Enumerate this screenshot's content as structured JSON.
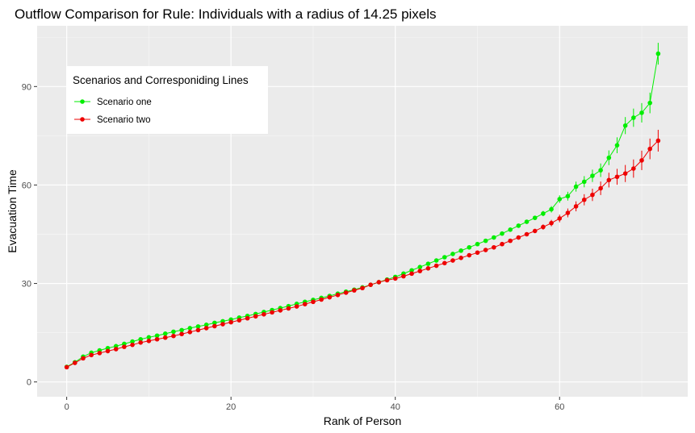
{
  "chart_data": {
    "type": "line",
    "title": "Outflow Comparison for Rule: Individuals with a radius of 14.25 pixels",
    "xlabel": "Rank of Person",
    "ylabel": "Evacuation Time",
    "xlim": [
      -3.6,
      75.6
    ],
    "ylim": [
      -4.5,
      108.5
    ],
    "x_ticks": [
      0,
      20,
      40,
      60
    ],
    "y_ticks": [
      0,
      30,
      60,
      90
    ],
    "x_tick_labels": [
      "0",
      "20",
      "40",
      "60"
    ],
    "y_tick_labels": [
      "0",
      "30",
      "60",
      "90"
    ],
    "grid": true,
    "background": "#ebebeb",
    "legend": {
      "title": "Scenarios and Corresponiding Lines",
      "position": "top-left"
    },
    "x": [
      0,
      1,
      2,
      3,
      4,
      5,
      6,
      7,
      8,
      9,
      10,
      11,
      12,
      13,
      14,
      15,
      16,
      17,
      18,
      19,
      20,
      21,
      22,
      23,
      24,
      25,
      26,
      27,
      28,
      29,
      30,
      31,
      32,
      33,
      34,
      35,
      36,
      37,
      38,
      39,
      40,
      41,
      42,
      43,
      44,
      45,
      46,
      47,
      48,
      49,
      50,
      51,
      52,
      53,
      54,
      55,
      56,
      57,
      58,
      59,
      60,
      61,
      62,
      63,
      64,
      65,
      66,
      67,
      68,
      69,
      70,
      71,
      72
    ],
    "series": [
      {
        "name": "Scenario one",
        "color": "#00ee00",
        "values": [
          4.6,
          6.0,
          7.7,
          8.9,
          9.6,
          10.3,
          10.9,
          11.6,
          12.3,
          13.0,
          13.6,
          14.1,
          14.7,
          15.3,
          15.8,
          16.4,
          16.9,
          17.4,
          18.0,
          18.5,
          19.0,
          19.6,
          20.1,
          20.7,
          21.3,
          21.9,
          22.5,
          23.1,
          23.8,
          24.4,
          25.0,
          25.6,
          26.2,
          26.9,
          27.5,
          28.1,
          28.8,
          29.6,
          30.4,
          31.2,
          32.0,
          33.0,
          34.0,
          35.0,
          36.0,
          37.0,
          38.0,
          39.0,
          40.0,
          41.0,
          42.0,
          43.0,
          44.0,
          45.2,
          46.4,
          47.6,
          48.8,
          50.0,
          51.3,
          52.6,
          55.7,
          56.6,
          59.5,
          61.0,
          62.8,
          64.5,
          68.3,
          72.1,
          78.1,
          80.5,
          82.0,
          85.0,
          100.0
        ]
      },
      {
        "name": "Scenario two",
        "color": "#ee0000",
        "values": [
          4.5,
          5.8,
          7.2,
          8.2,
          8.8,
          9.4,
          10.0,
          10.7,
          11.3,
          12.0,
          12.5,
          13.0,
          13.5,
          14.0,
          14.6,
          15.2,
          15.8,
          16.4,
          17.0,
          17.6,
          18.2,
          18.8,
          19.4,
          20.0,
          20.6,
          21.2,
          21.8,
          22.4,
          23.0,
          23.7,
          24.4,
          25.1,
          25.8,
          26.5,
          27.2,
          27.9,
          28.6,
          29.6,
          30.4,
          31.0,
          31.5,
          32.2,
          33.0,
          33.8,
          34.6,
          35.4,
          36.2,
          37.0,
          37.8,
          38.6,
          39.4,
          40.2,
          41.0,
          42.0,
          43.0,
          44.0,
          45.0,
          46.0,
          47.2,
          48.4,
          49.8,
          51.5,
          53.5,
          55.5,
          57.0,
          59.0,
          61.5,
          62.5,
          63.5,
          65.0,
          67.5,
          71.0,
          73.5
        ]
      }
    ]
  }
}
